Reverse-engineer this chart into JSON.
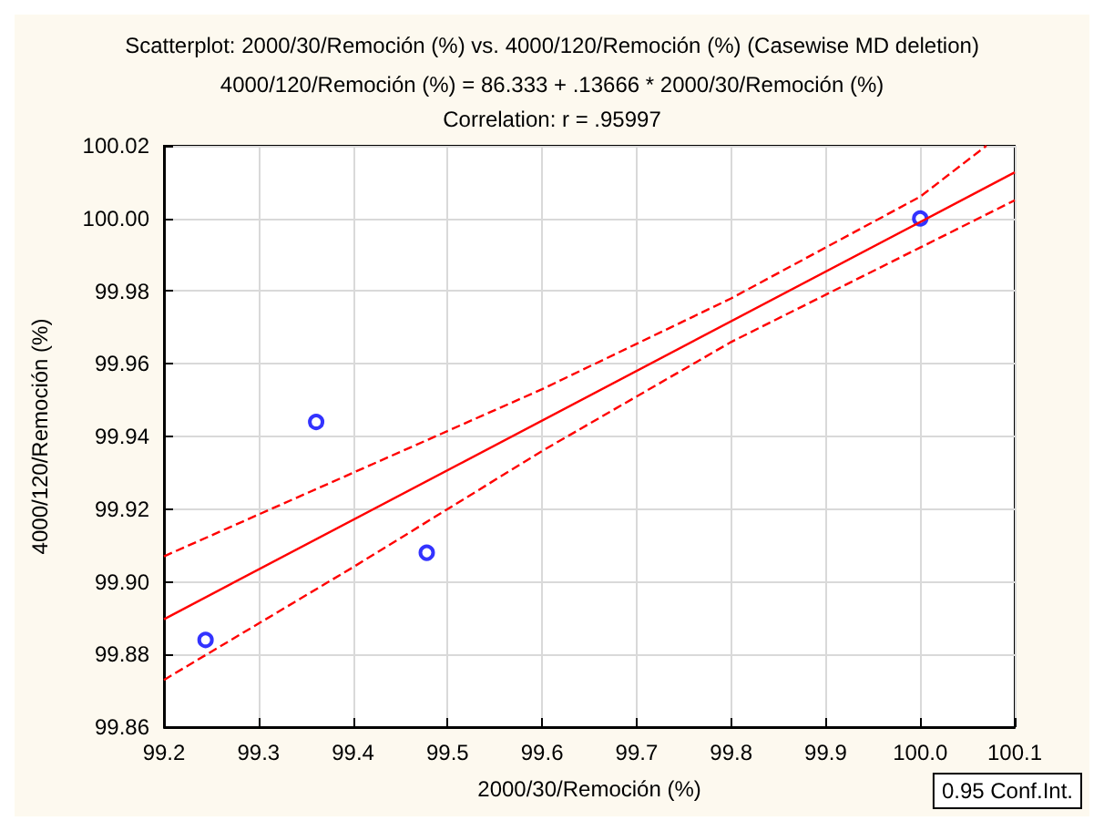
{
  "chart_data": {
    "type": "scatter",
    "title": "Scatterplot: 2000/30/Remoción (%) vs. 4000/120/Remoción (%) (Casewise MD deletion)",
    "subtitle": "4000/120/Remoción (%) = 86.333 + .13666 * 2000/30/Remoción (%)\nCorrelation: r = .95997",
    "xlabel": "2000/30/Remoción (%)",
    "ylabel": "4000/120/Remoción (%)",
    "annotations": [
      "0.95 Conf.Int."
    ],
    "xlim": [
      99.2,
      100.1
    ],
    "xticks": [
      99.2,
      99.3,
      99.4,
      99.5,
      99.6,
      99.7,
      99.8,
      99.9,
      {
        "value": 100,
        "label": "100.0"
      },
      100.1
    ],
    "ylim": [
      99.86,
      100.02
    ],
    "yticks": [
      99.86,
      99.88,
      {
        "value": 99.9,
        "label": "99.90"
      },
      99.92,
      99.94,
      99.96,
      99.98,
      {
        "value": 100,
        "label": "100.00"
      },
      100.02
    ],
    "grid": true,
    "series": [
      {
        "color": "#0000ff",
        "marker": "circle",
        "x": [
          99.244,
          99.361,
          99.478,
          100.0
        ],
        "values": [
          99.884,
          99.944,
          99.908,
          100.0
        ]
      },
      {
        "type": "line",
        "color": "#ff0000",
        "line_style": "solid",
        "marker": "none",
        "x": [
          99.2,
          100.1
        ],
        "values": [
          99.8897,
          100.0127
        ]
      },
      {
        "type": "line",
        "color": "#ff0000",
        "line_style": "dashed",
        "marker": "none",
        "x": [
          99.2,
          99.4,
          99.6,
          99.8,
          100.0,
          100.07
        ],
        "values": [
          99.907,
          99.93,
          99.953,
          99.978,
          100.006,
          100.02
        ]
      },
      {
        "type": "line",
        "color": "#ff0000",
        "line_style": "dashed",
        "marker": "none",
        "x": [
          99.2,
          99.4,
          99.6,
          99.8,
          100.0,
          100.1
        ],
        "values": [
          99.873,
          99.904,
          99.936,
          99.966,
          99.992,
          100.005
        ]
      }
    ]
  }
}
